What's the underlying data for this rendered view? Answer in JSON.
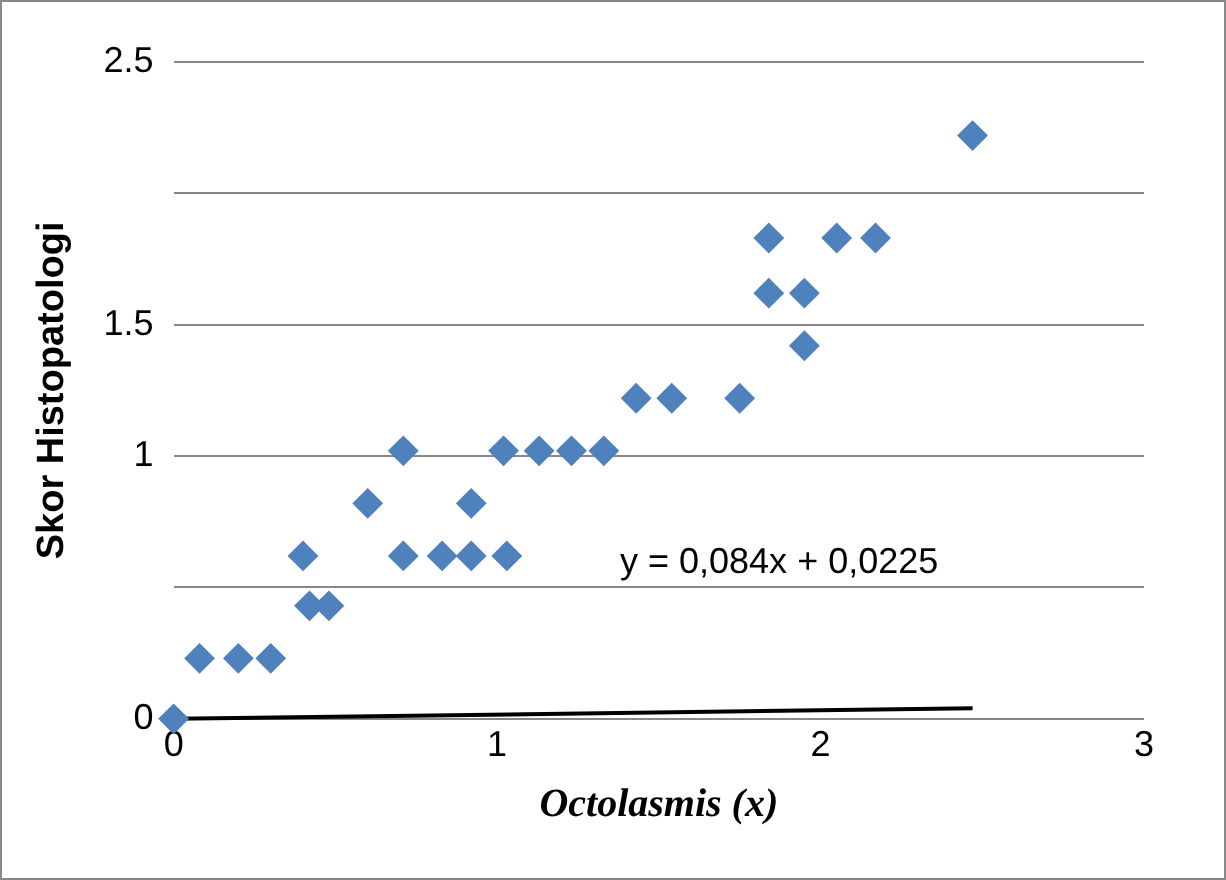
{
  "chart_data": {
    "type": "scatter",
    "xlabel": "Octolasmis (x)",
    "ylabel": "Skor Histopatologi",
    "annotations": [
      "y = 0,084x + 0,0225"
    ],
    "xlim": [
      0,
      3
    ],
    "xticks": [
      0,
      1,
      2,
      3
    ],
    "ylim": [
      0,
      2.5
    ],
    "yticks": [
      0,
      {
        "value": 0.5,
        "label": null
      },
      1,
      1.5,
      {
        "value": 2,
        "label": null
      },
      2.5
    ],
    "grid": "y",
    "legend": false,
    "marker": "diamond",
    "series": [
      {
        "color": "#4f81bd",
        "x": [
          0,
          0.08,
          0.2,
          0.3,
          0.42,
          0.48,
          0.4,
          0.6,
          0.71,
          0.71,
          0.83,
          0.92,
          1.03,
          0.92,
          1.02,
          1.13,
          1.23,
          1.33,
          1.43,
          1.54,
          1.75,
          1.84,
          1.84,
          1.95,
          1.95,
          2.05,
          2.17,
          2.47
        ],
        "values": [
          0,
          0.23,
          0.23,
          0.23,
          0.43,
          0.43,
          0.62,
          0.82,
          1.02,
          0.62,
          0.62,
          0.62,
          0.62,
          0.82,
          1.02,
          1.02,
          1.02,
          1.02,
          1.22,
          1.22,
          1.22,
          1.83,
          1.62,
          1.62,
          1.42,
          1.83,
          1.83,
          2.22
        ]
      },
      {
        "type": "line",
        "color": "#000000",
        "x": [
          0,
          2.47
        ],
        "values": [
          0,
          0.04
        ],
        "marker": "none"
      }
    ]
  }
}
